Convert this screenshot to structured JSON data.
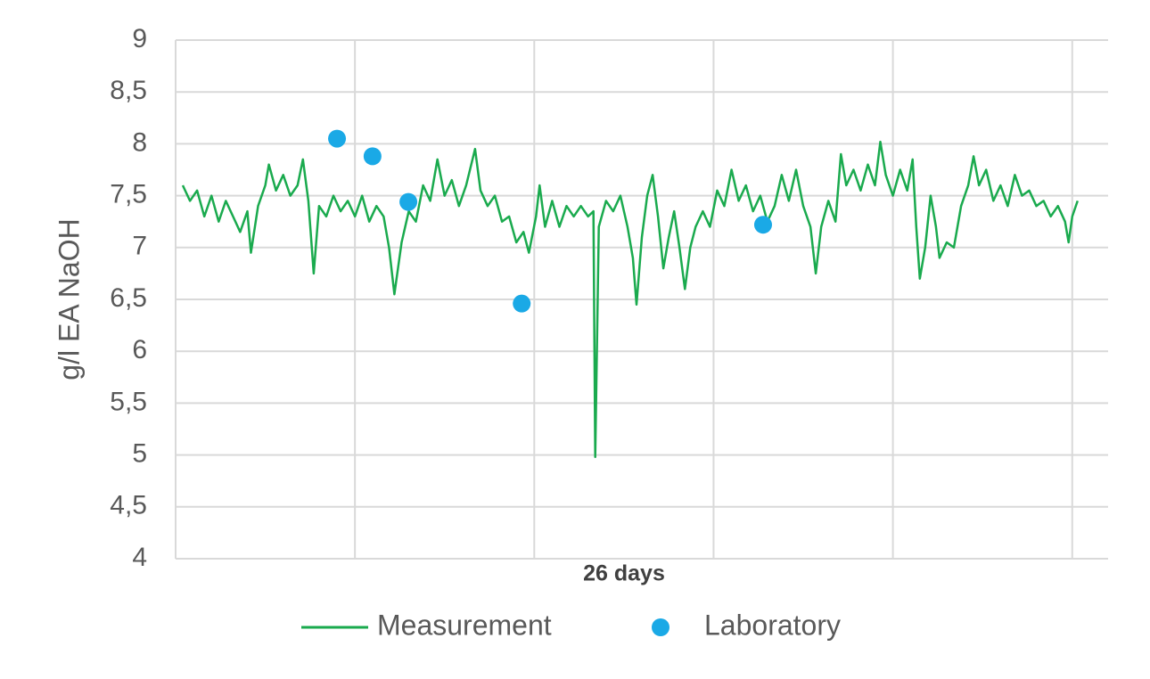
{
  "chart_data": {
    "type": "line",
    "y_label": "g/l EA NaOH",
    "x_label": "26 days",
    "xlim": [
      0,
      26
    ],
    "xticks": [
      5,
      10,
      15,
      20,
      25
    ],
    "ylim": [
      4,
      9
    ],
    "yticks": [
      4,
      {
        "value": 4.5,
        "label": "4,5"
      },
      5,
      {
        "value": 5.5,
        "label": "5,5"
      },
      6,
      {
        "value": 6.5,
        "label": "6,5"
      },
      7,
      {
        "value": 7.5,
        "label": "7,5"
      },
      8,
      {
        "value": 8.5,
        "label": "8,5"
      },
      9
    ],
    "grid": true,
    "legend": "bottom",
    "series": [
      {
        "name": "Measurement",
        "type": "line",
        "color": "#1aaa4e",
        "x": [
          0.2,
          0.4,
          0.6,
          0.8,
          1.0,
          1.2,
          1.4,
          1.6,
          1.8,
          2.0,
          2.1,
          2.3,
          2.5,
          2.6,
          2.8,
          3.0,
          3.2,
          3.4,
          3.55,
          3.7,
          3.85,
          4.0,
          4.2,
          4.4,
          4.6,
          4.8,
          5.0,
          5.2,
          5.4,
          5.6,
          5.8,
          5.95,
          6.1,
          6.3,
          6.5,
          6.7,
          6.9,
          7.1,
          7.3,
          7.5,
          7.7,
          7.9,
          8.1,
          8.35,
          8.5,
          8.7,
          8.9,
          9.1,
          9.3,
          9.5,
          9.7,
          9.85,
          10.05,
          10.15,
          10.3,
          10.5,
          10.7,
          10.9,
          11.1,
          11.3,
          11.5,
          11.65,
          11.7,
          11.8,
          12.0,
          12.2,
          12.4,
          12.6,
          12.75,
          12.85,
          13.0,
          13.15,
          13.3,
          13.45,
          13.6,
          13.75,
          13.9,
          14.05,
          14.2,
          14.35,
          14.5,
          14.7,
          14.9,
          15.1,
          15.3,
          15.5,
          15.7,
          15.9,
          16.1,
          16.3,
          16.5,
          16.7,
          16.9,
          17.1,
          17.3,
          17.5,
          17.7,
          17.85,
          18.0,
          18.2,
          18.4,
          18.55,
          18.7,
          18.9,
          19.1,
          19.3,
          19.5,
          19.65,
          19.8,
          20.0,
          20.2,
          20.4,
          20.55,
          20.65,
          20.75,
          20.9,
          21.05,
          21.2,
          21.3,
          21.5,
          21.7,
          21.9,
          22.1,
          22.25,
          22.4,
          22.6,
          22.8,
          23.0,
          23.2,
          23.4,
          23.6,
          23.8,
          24.0,
          24.2,
          24.4,
          24.6,
          24.8,
          24.9,
          25.0,
          25.15
        ],
        "values": [
          7.6,
          7.45,
          7.55,
          7.3,
          7.5,
          7.25,
          7.45,
          7.3,
          7.15,
          7.35,
          6.95,
          7.4,
          7.6,
          7.8,
          7.55,
          7.7,
          7.5,
          7.6,
          7.85,
          7.45,
          6.75,
          7.4,
          7.3,
          7.5,
          7.35,
          7.45,
          7.3,
          7.5,
          7.25,
          7.4,
          7.3,
          7.0,
          6.55,
          7.05,
          7.35,
          7.25,
          7.6,
          7.45,
          7.85,
          7.5,
          7.65,
          7.4,
          7.6,
          7.95,
          7.55,
          7.4,
          7.5,
          7.25,
          7.3,
          7.05,
          7.15,
          6.95,
          7.3,
          7.6,
          7.2,
          7.45,
          7.2,
          7.4,
          7.3,
          7.4,
          7.3,
          7.35,
          4.98,
          7.2,
          7.45,
          7.35,
          7.5,
          7.2,
          6.9,
          6.45,
          7.1,
          7.5,
          7.7,
          7.3,
          6.8,
          7.1,
          7.35,
          7.0,
          6.6,
          7.0,
          7.2,
          7.35,
          7.2,
          7.55,
          7.4,
          7.75,
          7.45,
          7.6,
          7.35,
          7.5,
          7.25,
          7.4,
          7.7,
          7.45,
          7.75,
          7.4,
          7.2,
          6.75,
          7.2,
          7.45,
          7.25,
          7.9,
          7.6,
          7.75,
          7.55,
          7.8,
          7.6,
          8.02,
          7.7,
          7.5,
          7.75,
          7.55,
          7.85,
          7.2,
          6.7,
          7.0,
          7.5,
          7.2,
          6.9,
          7.05,
          7.0,
          7.4,
          7.6,
          7.88,
          7.6,
          7.75,
          7.45,
          7.6,
          7.4,
          7.7,
          7.5,
          7.55,
          7.4,
          7.45,
          7.3,
          7.4,
          7.25,
          7.05,
          7.3,
          7.45
        ]
      },
      {
        "name": "Laboratory",
        "type": "scatter",
        "color": "#1aa9e6",
        "x": [
          4.5,
          5.49,
          6.49,
          9.65,
          16.38
        ],
        "values": [
          8.05,
          7.88,
          7.44,
          6.46,
          7.22
        ]
      }
    ]
  }
}
